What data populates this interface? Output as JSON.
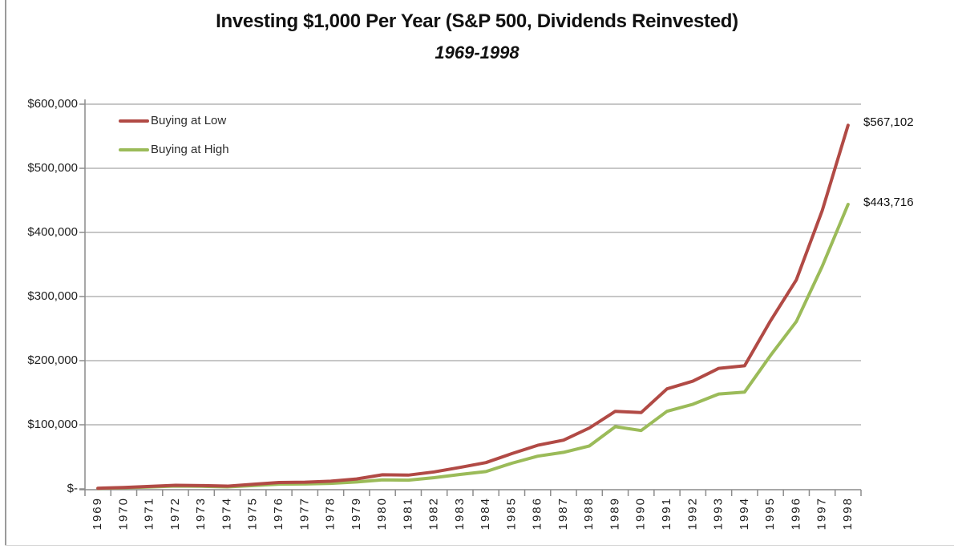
{
  "chart_data": {
    "type": "line",
    "title": "Investing $1,000 Per Year (S&P 500, Dividends Reinvested)",
    "subtitle": "1969-1998",
    "x": [
      1969,
      1970,
      1971,
      1972,
      1973,
      1974,
      1975,
      1976,
      1977,
      1978,
      1979,
      1980,
      1981,
      1982,
      1983,
      1984,
      1985,
      1986,
      1987,
      1988,
      1989,
      1990,
      1991,
      1992,
      1993,
      1994,
      1995,
      1996,
      1997,
      1998
    ],
    "series": [
      {
        "name": "Buying at Low",
        "color": "#b14a45",
        "end_label": "$567,102",
        "final_value": 567102,
        "values": [
          1000,
          2200,
          3900,
          5600,
          5200,
          4300,
          7200,
          10000,
          10400,
          12000,
          15500,
          22000,
          21500,
          26500,
          33500,
          41000,
          55000,
          68000,
          76000,
          95000,
          121000,
          119000,
          156000,
          168000,
          188000,
          192000,
          262000,
          326000,
          434000,
          567102
        ]
      },
      {
        "name": "Buying at High",
        "color": "#9bbb59",
        "end_label": "$443,716",
        "final_value": 443716,
        "values": [
          800,
          1700,
          3000,
          4400,
          4000,
          3100,
          5200,
          7300,
          7600,
          8600,
          10800,
          14000,
          13600,
          17500,
          22500,
          27000,
          40000,
          51000,
          57000,
          67000,
          97000,
          91000,
          121000,
          132000,
          148000,
          151000,
          208000,
          261000,
          347000,
          443716
        ]
      }
    ],
    "ylim": [
      0,
      600000
    ],
    "y_tick_labels": [
      "$600,000",
      "$500,000",
      "$400,000",
      "$300,000",
      "$200,000",
      "$100,000",
      "$-"
    ],
    "grid": "horizontal-only",
    "legend_position": "inside-top-left",
    "axis_color": "#8c8c8c",
    "grid_color": "#8f8f8f",
    "label_color": "#1f1f1f"
  }
}
